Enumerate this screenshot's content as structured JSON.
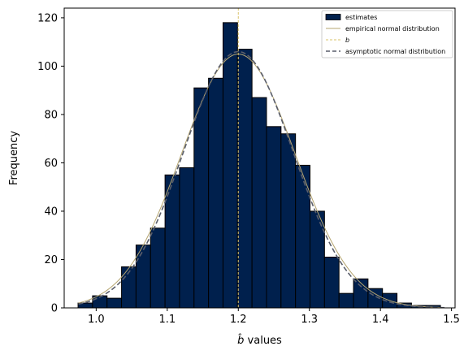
{
  "chart_data": {
    "type": "bar",
    "title": "",
    "xlabel": "values",
    "xlabel_symbol": "b̂",
    "ylabel": "Frequency",
    "xlim": [
      0.955,
      1.505
    ],
    "ylim": [
      0,
      124
    ],
    "xticks": [
      1.0,
      1.1,
      1.2,
      1.3,
      1.4,
      1.5
    ],
    "xtick_labels": [
      "1.0",
      "1.1",
      "1.2",
      "1.3",
      "1.4",
      "1.5"
    ],
    "yticks": [
      0,
      20,
      40,
      60,
      80,
      100,
      120
    ],
    "ytick_labels": [
      "0",
      "20",
      "40",
      "60",
      "80",
      "100",
      "120"
    ],
    "grid": false,
    "legend_position": "top-right",
    "histogram": {
      "name": "estimates",
      "color": "#00204d",
      "edge_color": "#000000",
      "bin_start": 0.9745,
      "bin_width": 0.0204,
      "counts": [
        2,
        5,
        4,
        17,
        26,
        33,
        55,
        58,
        91,
        95,
        118,
        107,
        87,
        75,
        72,
        59,
        40,
        21,
        6,
        12,
        8,
        6,
        2,
        1,
        1
      ]
    },
    "empirical_normal": {
      "name": "empirical normal distribution",
      "color": "#b5a570",
      "mean": 1.2,
      "peak": 105,
      "sd": 0.08
    },
    "true_b": {
      "name": "b",
      "value": 1.2,
      "color": "#d9c36a"
    },
    "asymptotic_normal": {
      "name": "asymptotic normal distribution",
      "color": "#5a5e6b",
      "mean": 1.2,
      "peak": 106,
      "sd": 0.0775
    },
    "legend": [
      {
        "label": "estimates"
      },
      {
        "label": "empirical normal distribution"
      },
      {
        "label": "b"
      },
      {
        "label": "asymptotic normal distribution"
      }
    ]
  }
}
